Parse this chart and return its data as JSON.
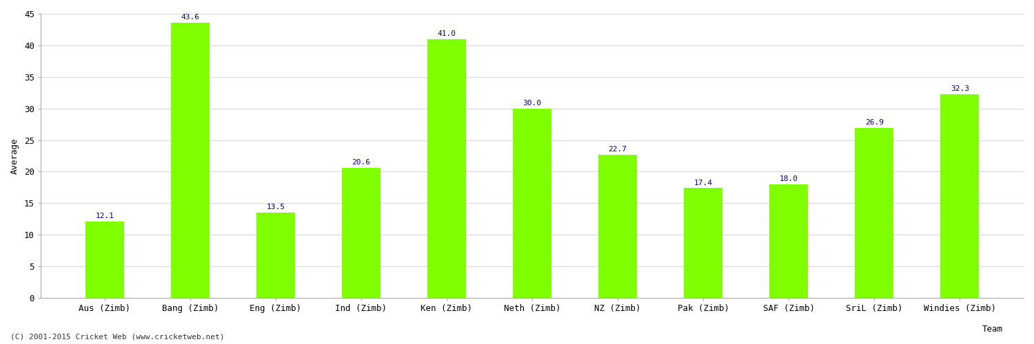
{
  "categories": [
    "Aus (Zimb)",
    "Bang (Zimb)",
    "Eng (Zimb)",
    "Ind (Zimb)",
    "Ken (Zimb)",
    "Neth (Zimb)",
    "NZ (Zimb)",
    "Pak (Zimb)",
    "SAF (Zimb)",
    "SriL (Zimb)",
    "Windies (Zimb)"
  ],
  "values": [
    12.1,
    43.6,
    13.5,
    20.6,
    41.0,
    30.0,
    22.7,
    17.4,
    18.0,
    26.9,
    32.3
  ],
  "bar_color": "#7FFF00",
  "bar_edge_color": "#7FFF00",
  "label_color": "#00008B",
  "ylabel": "Average",
  "xlabel": "Team",
  "ylim": [
    0,
    45
  ],
  "yticks": [
    0,
    5,
    10,
    15,
    20,
    25,
    30,
    35,
    40,
    45
  ],
  "grid_color": "#d8d8d8",
  "bg_color": "#ffffff",
  "fig_bg_color": "#ffffff",
  "footer": "(C) 2001-2015 Cricket Web (www.cricketweb.net)",
  "label_fontsize": 8,
  "axis_fontsize": 9,
  "footer_fontsize": 8,
  "bar_width": 0.45
}
